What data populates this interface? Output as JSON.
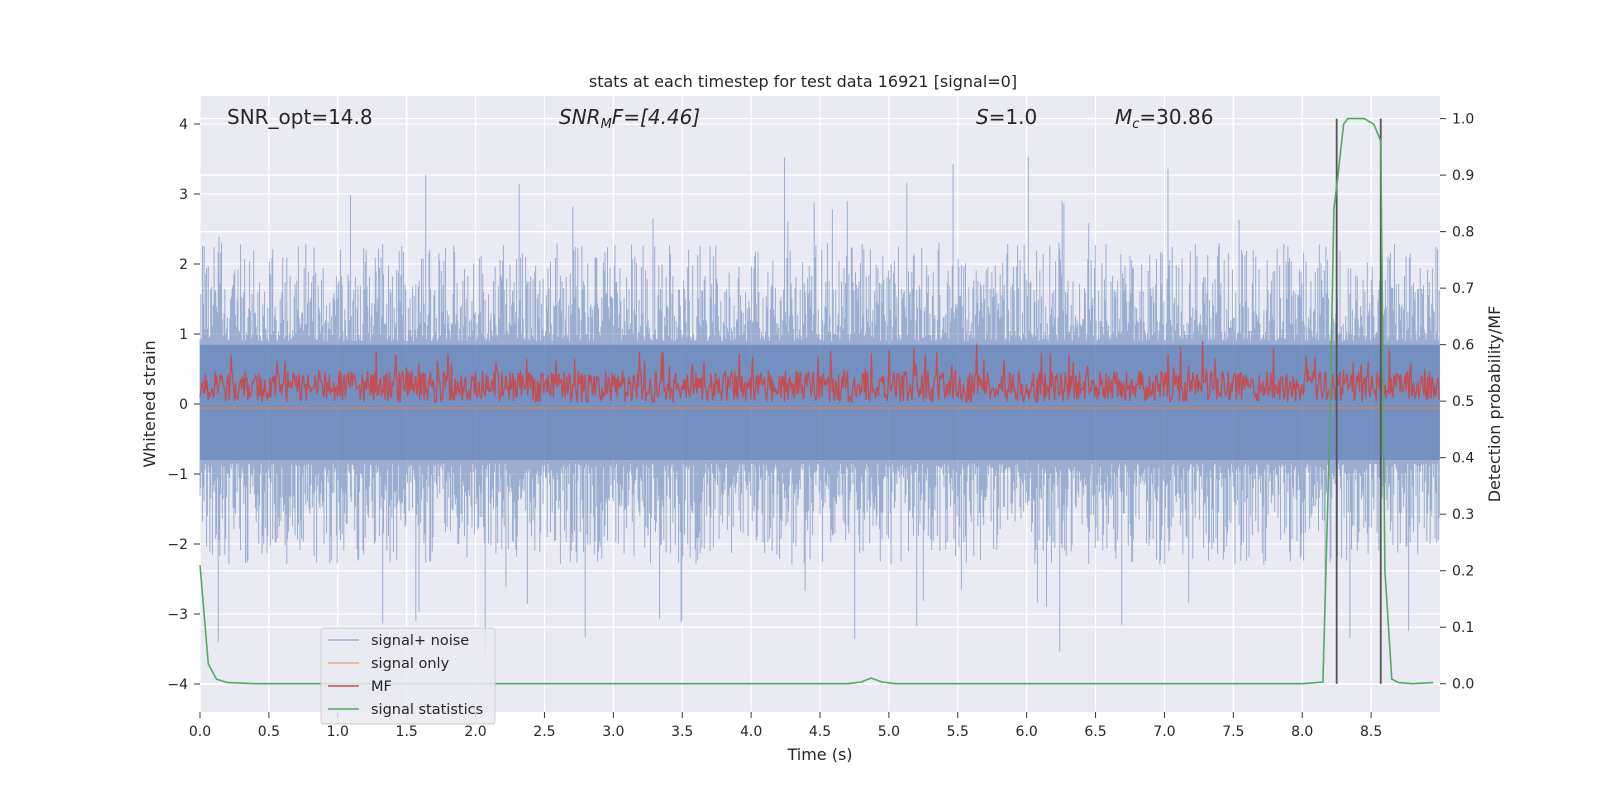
{
  "chart_data": {
    "type": "line",
    "title": "stats at each timestep for test data 16921 [signal=0]",
    "xlabel": "Time (s)",
    "ylabel": "Whitened strain",
    "y2label": "Detection probability/MF",
    "xlim": [
      0.0,
      9.0
    ],
    "ylim": [
      -4.4,
      4.4
    ],
    "y2lim": [
      -0.05,
      1.04
    ],
    "xticks": [
      "0.0",
      "0.5",
      "1.0",
      "1.5",
      "2.0",
      "2.5",
      "3.0",
      "3.5",
      "4.0",
      "4.5",
      "5.0",
      "5.5",
      "6.0",
      "6.5",
      "7.0",
      "7.5",
      "8.0",
      "8.5"
    ],
    "yticks": [
      "−4",
      "−3",
      "−2",
      "−1",
      "0",
      "1",
      "2",
      "3",
      "4"
    ],
    "y2ticks": [
      "0.0",
      "0.1",
      "0.2",
      "0.3",
      "0.4",
      "0.5",
      "0.6",
      "0.7",
      "0.8",
      "0.9",
      "1.0"
    ],
    "grid": true,
    "legend_position": "lower-left",
    "annotations": {
      "snr_opt": "SNR_opt=14.8",
      "snr_mf_base": "SNR",
      "snr_mf_sub": "M",
      "snr_mf_rest": "F=[4.46]",
      "s_var": "S",
      "s_rest": "=1.0",
      "mc_base": "M",
      "mc_sub": "c",
      "mc_rest": "=30.86"
    },
    "vlines": [
      8.25,
      8.57
    ],
    "series": [
      {
        "name": "signal+ noise",
        "color": "#4c72b0",
        "description_kind": "noise",
        "envelope": {
          "upper_typical": 1.7,
          "lower_typical": -1.7,
          "upper_peak": 3.65,
          "lower_peak": -3.6
        }
      },
      {
        "name": "signal only",
        "color": "#dd8452",
        "values_constant": 0.0
      },
      {
        "name": "MF",
        "color": "#c44e52",
        "envelope": {
          "center": 0.25,
          "upper_peak": 0.95,
          "lower_min": 0.0
        }
      },
      {
        "name": "signal statistics",
        "color": "#55a868",
        "x": [
          0.0,
          0.06,
          0.12,
          0.2,
          0.4,
          1.0,
          2.0,
          3.0,
          4.0,
          4.5,
          4.7,
          4.8,
          4.87,
          4.95,
          5.05,
          6.0,
          7.0,
          8.0,
          8.15,
          8.2,
          8.23,
          8.26,
          8.3,
          8.33,
          8.45,
          8.52,
          8.57,
          8.6,
          8.65,
          8.7,
          8.8,
          8.95
        ],
        "y": [
          0.21,
          0.035,
          0.008,
          0.002,
          0.0,
          0.0,
          0.0,
          0.0,
          0.0,
          0.0,
          0.0,
          0.003,
          0.01,
          0.003,
          0.0,
          0.0,
          0.0,
          0.0,
          0.003,
          0.45,
          0.84,
          0.9,
          0.99,
          1.0,
          1.0,
          0.99,
          0.96,
          0.2,
          0.008,
          0.002,
          0.0,
          0.002
        ]
      }
    ]
  }
}
